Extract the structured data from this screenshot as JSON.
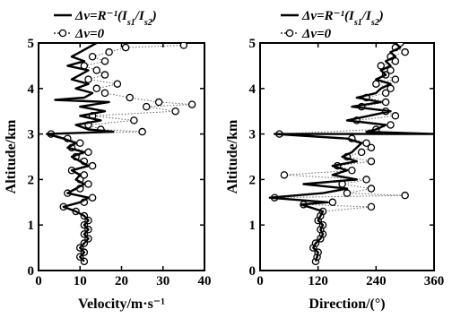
{
  "chart_data": [
    {
      "type": "line",
      "legend": {
        "position": "top-left",
        "entries": [
          {
            "name": "Δν=R⁻¹(I_s1/I_s2)",
            "style": "solid-line"
          },
          {
            "name": "Δν=0",
            "style": "dotted-line-open-circles"
          }
        ]
      },
      "xlabel": "Velocity/m·s⁻¹",
      "ylabel": "Altitude/km",
      "xlim": [
        0,
        40
      ],
      "ylim": [
        0,
        5
      ],
      "xticks": [
        0,
        10,
        20,
        30,
        40
      ],
      "yticks": [
        0,
        1,
        2,
        3,
        4,
        5
      ],
      "grid": false,
      "series": [
        {
          "name": "Δν=R⁻¹(I_s1/I_s2)",
          "points": [
            [
              11,
              0.2
            ],
            [
              10,
              0.3
            ],
            [
              11,
              0.4
            ],
            [
              10,
              0.5
            ],
            [
              11,
              0.6
            ],
            [
              12,
              0.7
            ],
            [
              11,
              0.8
            ],
            [
              12,
              0.9
            ],
            [
              11,
              1.0
            ],
            [
              12,
              1.1
            ],
            [
              11,
              1.2
            ],
            [
              9,
              1.3
            ],
            [
              6,
              1.4
            ],
            [
              10,
              1.5
            ],
            [
              12,
              1.6
            ],
            [
              7,
              1.7
            ],
            [
              9,
              1.8
            ],
            [
              11,
              1.9
            ],
            [
              9,
              2.0
            ],
            [
              10,
              2.1
            ],
            [
              8,
              2.2
            ],
            [
              12,
              2.3
            ],
            [
              10,
              2.4
            ],
            [
              8,
              2.5
            ],
            [
              11,
              2.6
            ],
            [
              7,
              2.7
            ],
            [
              9,
              2.8
            ],
            [
              6,
              2.9
            ],
            [
              2,
              3.0
            ],
            [
              18,
              3.05
            ],
            [
              12,
              3.1
            ],
            [
              9,
              3.2
            ],
            [
              15,
              3.3
            ],
            [
              10,
              3.4
            ],
            [
              16,
              3.5
            ],
            [
              10,
              3.6
            ],
            [
              17,
              3.7
            ],
            [
              4,
              3.75
            ],
            [
              11,
              3.8
            ],
            [
              13,
              3.9
            ],
            [
              9,
              4.0
            ],
            [
              12,
              4.1
            ],
            [
              8,
              4.2
            ],
            [
              10,
              4.3
            ],
            [
              12,
              4.4
            ],
            [
              7,
              4.5
            ],
            [
              11,
              4.6
            ],
            [
              8,
              4.7
            ],
            [
              10,
              4.8
            ],
            [
              12,
              4.9
            ],
            [
              14,
              5.0
            ]
          ]
        },
        {
          "name": "Δν=0",
          "points": [
            [
              11,
              0.2
            ],
            [
              10,
              0.3
            ],
            [
              11,
              0.4
            ],
            [
              10,
              0.5
            ],
            [
              11,
              0.6
            ],
            [
              12,
              0.7
            ],
            [
              11,
              0.8
            ],
            [
              12,
              0.9
            ],
            [
              11,
              1.0
            ],
            [
              12,
              1.1
            ],
            [
              11,
              1.2
            ],
            [
              9,
              1.3
            ],
            [
              6,
              1.4
            ],
            [
              11,
              1.5
            ],
            [
              13,
              1.6
            ],
            [
              7,
              1.7
            ],
            [
              10,
              1.8
            ],
            [
              12,
              1.9
            ],
            [
              10,
              2.0
            ],
            [
              11,
              2.1
            ],
            [
              8,
              2.2
            ],
            [
              13,
              2.3
            ],
            [
              11,
              2.4
            ],
            [
              9,
              2.5
            ],
            [
              12,
              2.6
            ],
            [
              8,
              2.7
            ],
            [
              10,
              2.8
            ],
            [
              7,
              2.9
            ],
            [
              3,
              3.0
            ],
            [
              25,
              3.05
            ],
            [
              15,
              3.1
            ],
            [
              12,
              3.2
            ],
            [
              23,
              3.3
            ],
            [
              13,
              3.4
            ],
            [
              33,
              3.5
            ],
            [
              26,
              3.6
            ],
            [
              37,
              3.65
            ],
            [
              29,
              3.7
            ],
            [
              22,
              3.8
            ],
            [
              16,
              3.9
            ],
            [
              14,
              4.0
            ],
            [
              19,
              4.1
            ],
            [
              12,
              4.2
            ],
            [
              16,
              4.3
            ],
            [
              14,
              4.4
            ],
            [
              11,
              4.5
            ],
            [
              16,
              4.6
            ],
            [
              13,
              4.7
            ],
            [
              17,
              4.8
            ],
            [
              21,
              4.9
            ],
            [
              35,
              4.95
            ]
          ]
        }
      ]
    },
    {
      "type": "line",
      "legend": {
        "position": "top-left",
        "entries": [
          {
            "name": "Δν=R⁻¹(I_s1/I_s2)",
            "style": "solid-line"
          },
          {
            "name": "Δν=0",
            "style": "dotted-line-open-circles"
          }
        ]
      },
      "xlabel": "Direction/(°)",
      "ylabel": "Altitude/km",
      "xlim": [
        0,
        360
      ],
      "ylim": [
        0,
        5
      ],
      "xticks": [
        0,
        120,
        240,
        360
      ],
      "yticks": [
        0,
        1,
        2,
        3,
        4,
        5
      ],
      "grid": false,
      "series": [
        {
          "name": "Δν=R⁻¹(I_s1/I_s2)",
          "points": [
            [
              115,
              0.2
            ],
            [
              118,
              0.3
            ],
            [
              120,
              0.4
            ],
            [
              110,
              0.5
            ],
            [
              115,
              0.6
            ],
            [
              125,
              0.7
            ],
            [
              130,
              0.8
            ],
            [
              125,
              0.9
            ],
            [
              130,
              1.0
            ],
            [
              120,
              1.1
            ],
            [
              125,
              1.2
            ],
            [
              130,
              1.3
            ],
            [
              85,
              1.45
            ],
            [
              140,
              1.5
            ],
            [
              20,
              1.6
            ],
            [
              130,
              1.7
            ],
            [
              180,
              1.8
            ],
            [
              90,
              1.9
            ],
            [
              200,
              2.0
            ],
            [
              150,
              2.1
            ],
            [
              180,
              2.2
            ],
            [
              150,
              2.3
            ],
            [
              200,
              2.4
            ],
            [
              170,
              2.5
            ],
            [
              190,
              2.6
            ],
            [
              200,
              2.7
            ],
            [
              210,
              2.8
            ],
            [
              180,
              2.9
            ],
            [
              30,
              3.0
            ],
            [
              360,
              3.0
            ],
            [
              220,
              3.05
            ],
            [
              240,
              3.1
            ],
            [
              260,
              3.2
            ],
            [
              180,
              3.3
            ],
            [
              270,
              3.5
            ],
            [
              190,
              3.6
            ],
            [
              250,
              3.7
            ],
            [
              200,
              3.8
            ],
            [
              240,
              3.9
            ],
            [
              250,
              4.0
            ],
            [
              270,
              4.1
            ],
            [
              240,
              4.2
            ],
            [
              260,
              4.3
            ],
            [
              250,
              4.4
            ],
            [
              270,
              4.5
            ],
            [
              260,
              4.6
            ],
            [
              280,
              4.7
            ],
            [
              270,
              4.8
            ],
            [
              290,
              4.9
            ],
            [
              280,
              5.0
            ]
          ]
        },
        {
          "name": "Δν=0",
          "points": [
            [
              115,
              0.2
            ],
            [
              118,
              0.3
            ],
            [
              120,
              0.4
            ],
            [
              110,
              0.5
            ],
            [
              115,
              0.6
            ],
            [
              125,
              0.7
            ],
            [
              130,
              0.8
            ],
            [
              125,
              0.9
            ],
            [
              130,
              1.0
            ],
            [
              120,
              1.1
            ],
            [
              125,
              1.2
            ],
            [
              130,
              1.3
            ],
            [
              230,
              1.4
            ],
            [
              90,
              1.45
            ],
            [
              150,
              1.5
            ],
            [
              30,
              1.6
            ],
            [
              300,
              1.65
            ],
            [
              180,
              1.7
            ],
            [
              230,
              1.8
            ],
            [
              170,
              1.9
            ],
            [
              220,
              2.0
            ],
            [
              50,
              2.1
            ],
            [
              190,
              2.2
            ],
            [
              160,
              2.3
            ],
            [
              230,
              2.4
            ],
            [
              180,
              2.5
            ],
            [
              210,
              2.6
            ],
            [
              230,
              2.7
            ],
            [
              220,
              2.8
            ],
            [
              190,
              2.9
            ],
            [
              40,
              3.0
            ],
            [
              240,
              3.1
            ],
            [
              270,
              3.2
            ],
            [
              200,
              3.3
            ],
            [
              280,
              3.4
            ],
            [
              260,
              3.5
            ],
            [
              210,
              3.6
            ],
            [
              260,
              3.7
            ],
            [
              220,
              3.8
            ],
            [
              260,
              3.9
            ],
            [
              270,
              4.0
            ],
            [
              240,
              4.1
            ],
            [
              280,
              4.2
            ],
            [
              260,
              4.3
            ],
            [
              270,
              4.4
            ],
            [
              250,
              4.5
            ],
            [
              280,
              4.6
            ],
            [
              270,
              4.7
            ],
            [
              300,
              4.8
            ],
            [
              280,
              4.9
            ],
            [
              290,
              5.0
            ]
          ]
        }
      ]
    }
  ]
}
